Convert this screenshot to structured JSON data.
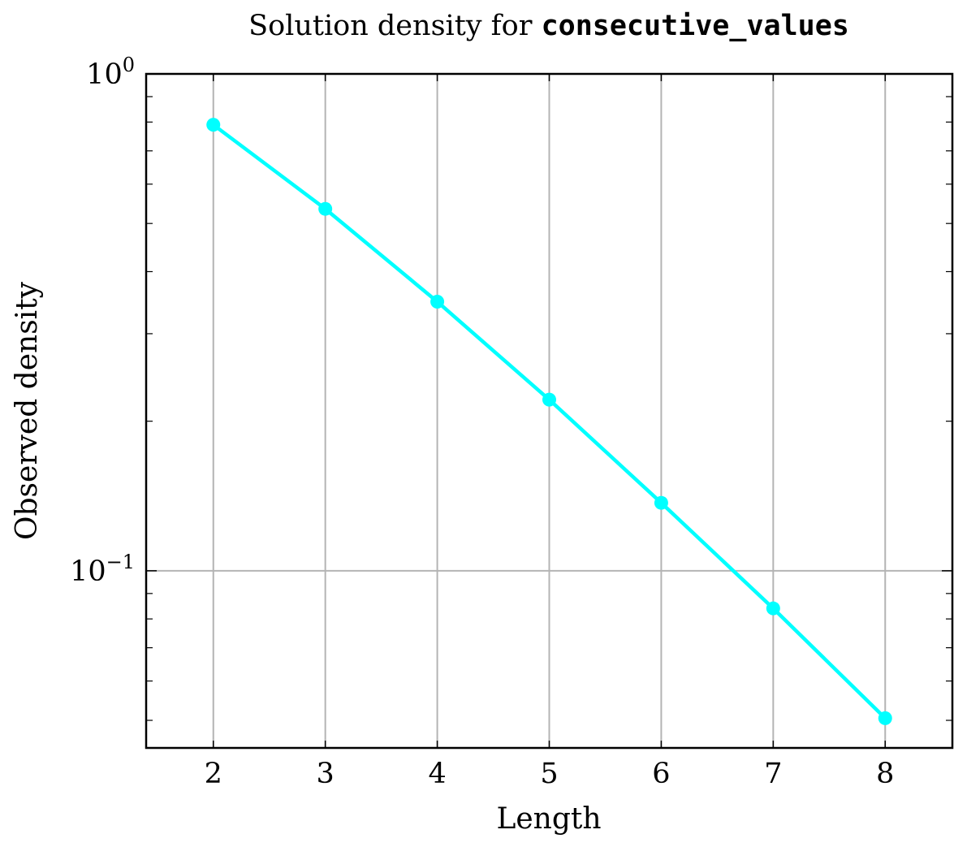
{
  "chart_data": {
    "type": "line",
    "title_prefix": "Solution density for ",
    "title_code": "consecutive_values",
    "xlabel": "Length",
    "ylabel": "Observed density",
    "y_scale": "log",
    "ylim": [
      0.044,
      1.0
    ],
    "xlim": [
      1.4,
      8.6
    ],
    "x_ticks": [
      "2",
      "3",
      "4",
      "5",
      "6",
      "7",
      "8"
    ],
    "y_tick_base": "10",
    "y_tick_exponents": [
      "0",
      "−1"
    ],
    "grid": true,
    "series": [
      {
        "x": [
          2,
          3,
          4,
          5,
          6,
          7,
          8
        ],
        "values": [
          0.79,
          0.535,
          0.348,
          0.221,
          0.137,
          0.084,
          0.0505
        ],
        "color": "#00ffff"
      }
    ]
  }
}
